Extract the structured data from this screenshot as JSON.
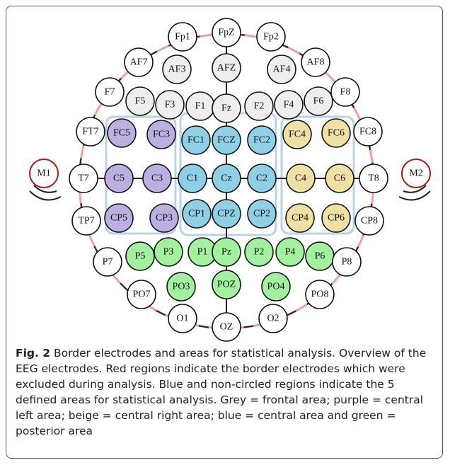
{
  "figure": {
    "nodes": [
      {
        "label": "Fp1",
        "color": "#ffffff"
      },
      {
        "label": "FpZ",
        "color": "#ffffff"
      },
      {
        "label": "Fp2",
        "color": "#ffffff"
      },
      {
        "label": "AF7",
        "color": "#ffffff"
      },
      {
        "label": "AF3",
        "color": "#eeeeee"
      },
      {
        "label": "AFZ",
        "color": "#eeeeee"
      },
      {
        "label": "AF4",
        "color": "#eeeeee"
      },
      {
        "label": "AF8",
        "color": "#ffffff"
      },
      {
        "label": "F7",
        "color": "#ffffff"
      },
      {
        "label": "F5",
        "color": "#eeeeee"
      },
      {
        "label": "F3",
        "color": "#eeeeee"
      },
      {
        "label": "F1",
        "color": "#eeeeee"
      },
      {
        "label": "Fz",
        "color": "#eeeeee"
      },
      {
        "label": "F2",
        "color": "#eeeeee"
      },
      {
        "label": "F4",
        "color": "#eeeeee"
      },
      {
        "label": "F6",
        "color": "#eeeeee"
      },
      {
        "label": "F8",
        "color": "#ffffff"
      },
      {
        "label": "FT7",
        "color": "#ffffff"
      },
      {
        "label": "FC5",
        "color": "#bcb0e2"
      },
      {
        "label": "FC3",
        "color": "#bcb0e2"
      },
      {
        "label": "FC1",
        "color": "#8fd0e6"
      },
      {
        "label": "FCZ",
        "color": "#8fd0e6"
      },
      {
        "label": "FC2",
        "color": "#8fd0e6"
      },
      {
        "label": "FC4",
        "color": "#efe0a6"
      },
      {
        "label": "FC6",
        "color": "#efe0a6"
      },
      {
        "label": "FC8",
        "color": "#ffffff"
      },
      {
        "label": "M1",
        "color": "#ffffff"
      },
      {
        "label": "T7",
        "color": "#ffffff"
      },
      {
        "label": "C5",
        "color": "#bcb0e2"
      },
      {
        "label": "C3",
        "color": "#bcb0e2"
      },
      {
        "label": "C1",
        "color": "#8fd0e6"
      },
      {
        "label": "Cz",
        "color": "#8fd0e6"
      },
      {
        "label": "C2",
        "color": "#8fd0e6"
      },
      {
        "label": "C4",
        "color": "#efe0a6"
      },
      {
        "label": "C6",
        "color": "#efe0a6"
      },
      {
        "label": "T8",
        "color": "#ffffff"
      },
      {
        "label": "M2",
        "color": "#ffffff"
      },
      {
        "label": "TP7",
        "color": "#ffffff"
      },
      {
        "label": "CP5",
        "color": "#bcb0e2"
      },
      {
        "label": "CP3",
        "color": "#bcb0e2"
      },
      {
        "label": "CP1",
        "color": "#8fd0e6"
      },
      {
        "label": "CPZ",
        "color": "#8fd0e6"
      },
      {
        "label": "CP2",
        "color": "#8fd0e6"
      },
      {
        "label": "CP4",
        "color": "#efe0a6"
      },
      {
        "label": "CP6",
        "color": "#efe0a6"
      },
      {
        "label": "CP8",
        "color": "#ffffff"
      },
      {
        "label": "P7",
        "color": "#ffffff"
      },
      {
        "label": "P5",
        "color": "#a2f0a0"
      },
      {
        "label": "P3",
        "color": "#a2f0a0"
      },
      {
        "label": "P1",
        "color": "#a2f0a0"
      },
      {
        "label": "Pz",
        "color": "#a2f0a0"
      },
      {
        "label": "P2",
        "color": "#a2f0a0"
      },
      {
        "label": "P4",
        "color": "#a2f0a0"
      },
      {
        "label": "P6",
        "color": "#a2f0a0"
      },
      {
        "label": "P8",
        "color": "#ffffff"
      },
      {
        "label": "PO7",
        "color": "#ffffff"
      },
      {
        "label": "PO3",
        "color": "#a2f0a0"
      },
      {
        "label": "POZ",
        "color": "#a2f0a0"
      },
      {
        "label": "PO4",
        "color": "#a2f0a0"
      },
      {
        "label": "PO8",
        "color": "#ffffff"
      },
      {
        "label": "O1",
        "color": "#ffffff"
      },
      {
        "label": "OZ",
        "color": "#ffffff"
      },
      {
        "label": "O2",
        "color": "#ffffff"
      }
    ]
  },
  "caption": {
    "label": "Fig. 2",
    "text": "Border electrodes and areas for statistical analysis. Overview of the EEG electrodes. Red regions indicate the border electrodes which were excluded during analysis. Blue and non-circled regions indicate the 5 defined areas for statistical analysis. Grey = frontal area; purple = central left area; beige = central right area; blue = central area and green = posterior area"
  }
}
